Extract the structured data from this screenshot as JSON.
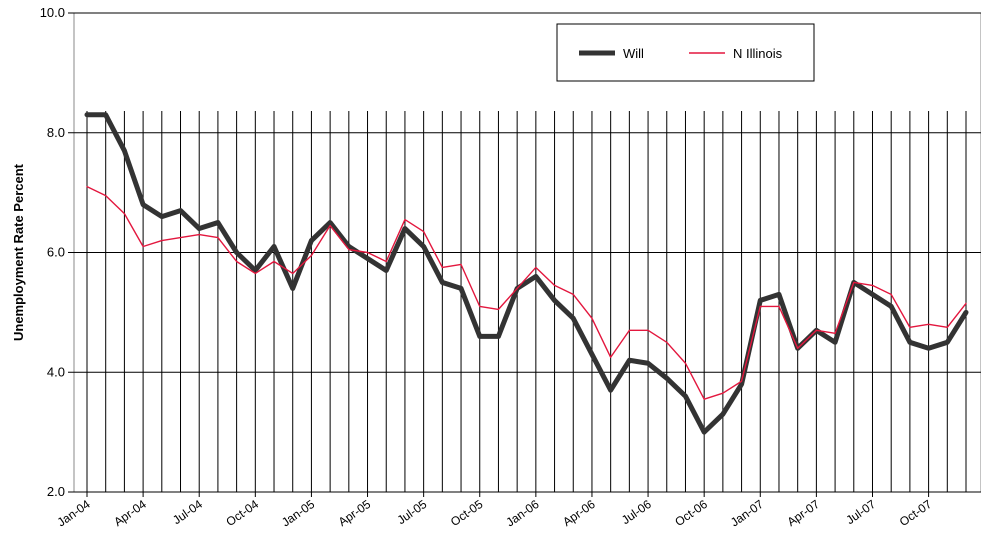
{
  "chart_data": {
    "type": "line",
    "title": "",
    "xlabel": "",
    "ylabel": "Unemployment Rate Percent",
    "ylim": [
      2.0,
      10.0
    ],
    "yticks": [
      "2.0",
      "4.0",
      "6.0",
      "8.0",
      "10.0"
    ],
    "xtick_labels": [
      "Jan-04",
      "Apr-04",
      "Jul-04",
      "Oct-04",
      "Jan-05",
      "Apr-05",
      "Jul-05",
      "Oct-05",
      "Jan-06",
      "Apr-06",
      "Jul-06",
      "Oct-06",
      "Jan-07",
      "Apr-07",
      "Jul-07",
      "Oct-07"
    ],
    "x": [
      "Jan-04",
      "Feb-04",
      "Mar-04",
      "Apr-04",
      "May-04",
      "Jun-04",
      "Jul-04",
      "Aug-04",
      "Sep-04",
      "Oct-04",
      "Nov-04",
      "Dec-04",
      "Jan-05",
      "Feb-05",
      "Mar-05",
      "Apr-05",
      "May-05",
      "Jun-05",
      "Jul-05",
      "Aug-05",
      "Sep-05",
      "Oct-05",
      "Nov-05",
      "Dec-05",
      "Jan-06",
      "Feb-06",
      "Mar-06",
      "Apr-06",
      "May-06",
      "Jun-06",
      "Jul-06",
      "Aug-06",
      "Sep-06",
      "Oct-06",
      "Nov-06",
      "Dec-06",
      "Jan-07",
      "Feb-07",
      "Mar-07",
      "Apr-07",
      "May-07",
      "Jun-07",
      "Jul-07",
      "Aug-07",
      "Sep-07",
      "Oct-07",
      "Nov-07",
      "Dec-07"
    ],
    "grid": true,
    "legend_position": "top-right",
    "series": [
      {
        "name": "Will",
        "color": "#333333",
        "values": [
          8.3,
          8.3,
          7.7,
          6.8,
          6.6,
          6.7,
          6.4,
          6.5,
          6.0,
          5.7,
          6.1,
          5.4,
          6.2,
          6.5,
          6.1,
          5.9,
          5.7,
          6.4,
          6.1,
          5.5,
          5.4,
          4.6,
          4.6,
          5.4,
          5.6,
          5.2,
          4.9,
          4.3,
          3.7,
          4.2,
          4.15,
          3.9,
          3.6,
          3.0,
          3.3,
          3.8,
          5.2,
          5.3,
          4.4,
          4.7,
          4.5,
          5.5,
          5.3,
          5.1,
          4.5,
          4.4,
          4.5,
          5.0
        ]
      },
      {
        "name": "N Illinois",
        "color": "#e3173e",
        "values": [
          7.1,
          6.95,
          6.65,
          6.1,
          6.2,
          6.25,
          6.3,
          6.25,
          5.85,
          5.65,
          5.85,
          5.65,
          5.95,
          6.45,
          6.05,
          6.0,
          5.85,
          6.55,
          6.35,
          5.75,
          5.8,
          5.1,
          5.05,
          5.4,
          5.75,
          5.45,
          5.3,
          4.9,
          4.25,
          4.7,
          4.7,
          4.5,
          4.15,
          3.55,
          3.65,
          3.85,
          5.1,
          5.1,
          4.4,
          4.7,
          4.65,
          5.5,
          5.45,
          5.3,
          4.75,
          4.8,
          4.75,
          5.15
        ]
      }
    ]
  }
}
